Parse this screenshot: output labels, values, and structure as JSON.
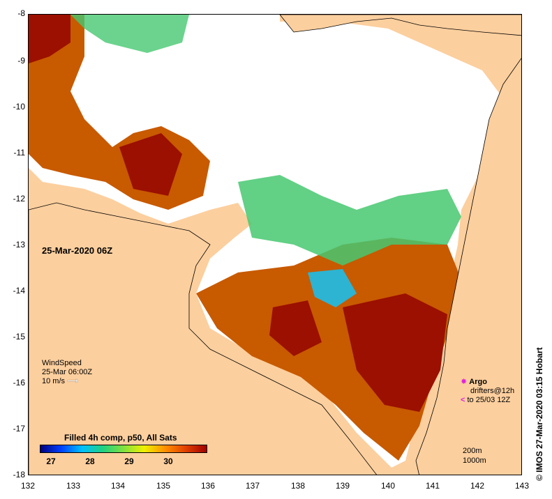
{
  "map": {
    "lat_labels": [
      "-8",
      "-9",
      "-10",
      "-11",
      "-12",
      "-13",
      "-14",
      "-15",
      "-16",
      "-17",
      "-18"
    ],
    "lon_labels": [
      "132",
      "133",
      "134",
      "135",
      "136",
      "137",
      "138",
      "139",
      "140",
      "141",
      "142",
      "143"
    ],
    "date_title": "25-Mar-2020 06Z",
    "colors": {
      "land": "#fccf9e",
      "cloud": "#ffffff",
      "warm": "#9b1000",
      "hot": "#c85a00"
    }
  },
  "wind": {
    "title": "WindSpeed",
    "time": "25-Mar 06:00Z",
    "speed_label": "10 m/s"
  },
  "colorbar": {
    "title": "Filled 4h comp, p50, All Sats",
    "labels": [
      "27",
      "28",
      "29",
      "30"
    ]
  },
  "legend": {
    "argo": "Argo",
    "drifters": "drifters@12h",
    "drifters_time": "to 25/03 12Z"
  },
  "scale": {
    "a": "200m",
    "b": "1000m"
  },
  "credit": "©  IMOS 27-Mar-2020 03:15 Hobart"
}
